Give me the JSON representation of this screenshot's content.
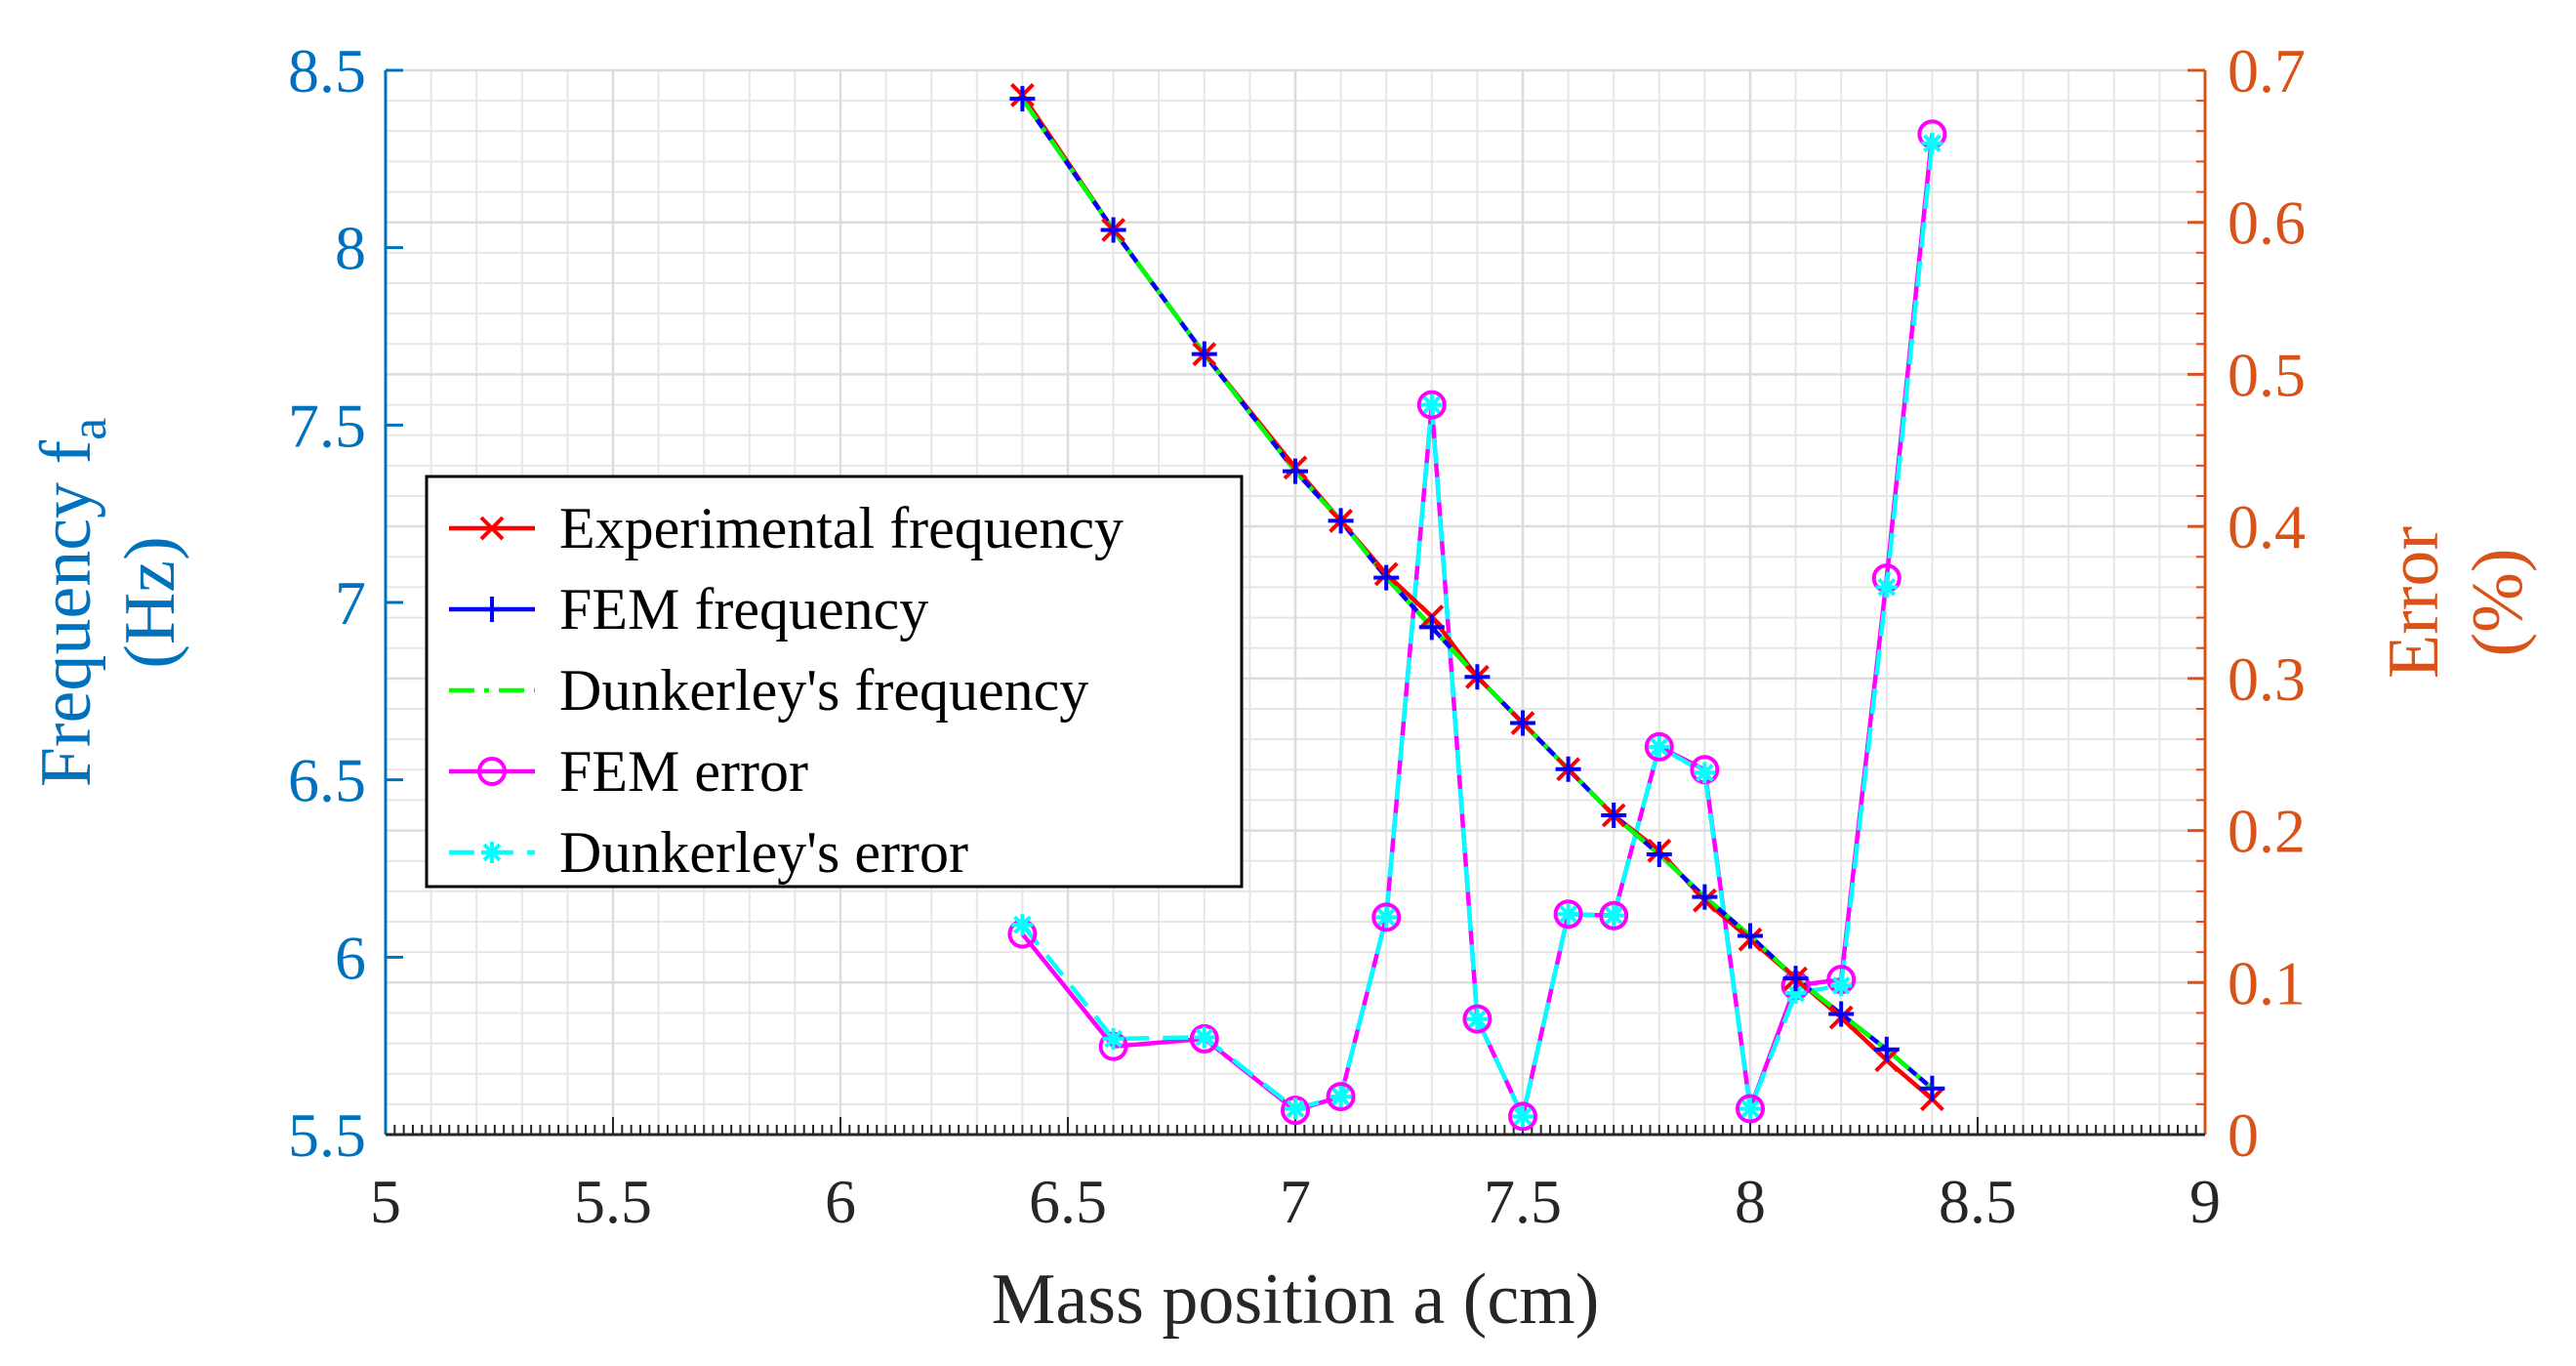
{
  "chart_data": {
    "type": "line",
    "xlabel": "Mass position a (cm)",
    "ylabel_left_lines": [
      "Frequency f",
      "(Hz)"
    ],
    "ylabel_left_subscript": "a",
    "ylabel_right_lines": [
      "Error",
      "(%)"
    ],
    "xlim": [
      5,
      9
    ],
    "ylim_left": [
      5.5,
      8.5
    ],
    "ylim_right": [
      0,
      0.7
    ],
    "x_ticks": [
      "5",
      "5.5",
      "6",
      "6.5",
      "7",
      "7.5",
      "8",
      "8.5",
      "9"
    ],
    "y_left_ticks": [
      "5.5",
      "6",
      "6.5",
      "7",
      "7.5",
      "8",
      "8.5"
    ],
    "y_right_ticks": [
      "0",
      "0.1",
      "0.2",
      "0.3",
      "0.4",
      "0.5",
      "0.6",
      "0.7"
    ],
    "grid": true,
    "legend_position": "center-left",
    "colors": {
      "left_axis": "#0072BD",
      "right_axis": "#D95319",
      "grid": "#E6E6E6",
      "axis_dark": "#262626"
    },
    "series": [
      {
        "name": "Experimental frequency",
        "axis": "left",
        "color": "#FF0000",
        "dash": "solid",
        "marker": "x",
        "x": [
          6.4,
          6.6,
          6.8,
          7.0,
          7.1,
          7.2,
          7.3,
          7.4,
          7.5,
          7.6,
          7.7,
          7.8,
          7.9,
          8.0,
          8.1,
          8.2,
          8.3,
          8.4
        ],
        "y": [
          8.43,
          8.05,
          7.7,
          7.38,
          7.23,
          7.08,
          6.96,
          6.79,
          6.66,
          6.53,
          6.4,
          6.3,
          6.16,
          6.05,
          5.94,
          5.83,
          5.71,
          5.6
        ]
      },
      {
        "name": "FEM frequency",
        "axis": "left",
        "color": "#0000FF",
        "dash": "solid",
        "marker": "plus",
        "x": [
          6.4,
          6.6,
          6.8,
          7.0,
          7.1,
          7.2,
          7.3,
          7.4,
          7.5,
          7.6,
          7.7,
          7.8,
          7.9,
          8.0,
          8.1,
          8.2,
          8.3,
          8.4
        ],
        "y": [
          8.42,
          8.05,
          7.7,
          7.37,
          7.23,
          7.07,
          6.93,
          6.79,
          6.66,
          6.53,
          6.4,
          6.29,
          6.17,
          6.06,
          5.94,
          5.84,
          5.74,
          5.63
        ]
      },
      {
        "name": "Dunkerley's frequency",
        "axis": "left",
        "color": "#00FF00",
        "dash": "dashdot",
        "marker": "none",
        "x": [
          6.4,
          6.6,
          6.8,
          7.0,
          7.1,
          7.2,
          7.3,
          7.4,
          7.5,
          7.6,
          7.7,
          7.8,
          7.9,
          8.0,
          8.1,
          8.2,
          8.3,
          8.4
        ],
        "y": [
          8.42,
          8.05,
          7.7,
          7.37,
          7.23,
          7.07,
          6.93,
          6.79,
          6.66,
          6.53,
          6.4,
          6.29,
          6.17,
          6.06,
          5.94,
          5.84,
          5.74,
          5.63
        ]
      },
      {
        "name": "FEM error",
        "axis": "right",
        "color": "#FF00FF",
        "dash": "solid",
        "marker": "circle",
        "x": [
          6.4,
          6.6,
          6.8,
          7.0,
          7.1,
          7.2,
          7.3,
          7.4,
          7.5,
          7.6,
          7.7,
          7.8,
          7.9,
          8.0,
          8.1,
          8.2,
          8.3,
          8.4
        ],
        "y": [
          0.132,
          0.058,
          0.063,
          0.016,
          0.025,
          0.143,
          0.48,
          0.076,
          0.012,
          0.145,
          0.144,
          0.255,
          0.24,
          0.017,
          0.098,
          0.102,
          0.366,
          0.658
        ]
      },
      {
        "name": "Dunkerley's error",
        "axis": "right",
        "color": "#00FFFF",
        "dash": "dashed",
        "marker": "asterisk",
        "x": [
          6.4,
          6.6,
          6.8,
          7.0,
          7.1,
          7.2,
          7.3,
          7.4,
          7.5,
          7.6,
          7.7,
          7.8,
          7.9,
          8.0,
          8.1,
          8.2,
          8.3,
          8.4
        ],
        "y": [
          0.138,
          0.063,
          0.064,
          0.017,
          0.025,
          0.143,
          0.48,
          0.076,
          0.012,
          0.145,
          0.144,
          0.255,
          0.238,
          0.017,
          0.093,
          0.098,
          0.36,
          0.652
        ]
      }
    ]
  }
}
